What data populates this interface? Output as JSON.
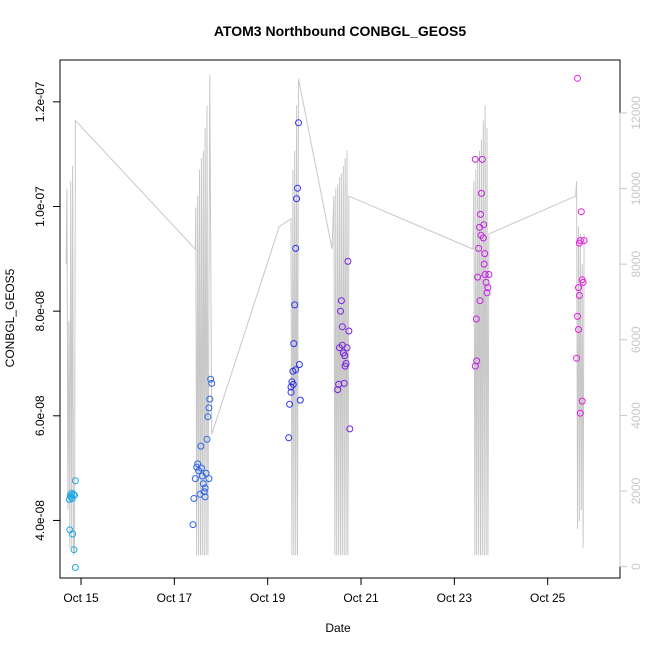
{
  "chart_data": {
    "type": "scatter",
    "title": "ATOM3 Northbound CONBGL_GEOS5",
    "xlabel": "Date",
    "ylabel": "CONBGL_GEOS5",
    "xlim": [
      14.55,
      26.55
    ],
    "ylim": [
      2.9e-08,
      1.28e-07
    ],
    "y2lim": [
      -300,
      13400
    ],
    "grid": false,
    "x_ticks": [
      15,
      17,
      19,
      21,
      23,
      25
    ],
    "x_tick_labels": [
      "Oct 15",
      "Oct 17",
      "Oct 19",
      "Oct 21",
      "Oct 23",
      "Oct 25"
    ],
    "y_ticks": [
      4e-08,
      6e-08,
      8e-08,
      1e-07,
      1.2e-07
    ],
    "y_tick_labels": [
      "4.0e-08",
      "6.0e-08",
      "8.0e-08",
      "1.0e-07",
      "1.2e-07"
    ],
    "y2_ticks": [
      0,
      2000,
      4000,
      6000,
      8000,
      10000,
      12000
    ],
    "y2_tick_labels": [
      "0",
      "2000",
      "4000",
      "6000",
      "8000",
      "10000",
      "12000"
    ],
    "colors": {
      "cluster1": "#1ea7e6",
      "cluster2": "#2c66e6",
      "cluster3": "#2f2ff0",
      "cluster4": "#7a1fe6",
      "cluster5": "#c81ee6",
      "cluster6": "#e61ee0",
      "altitude": "#c8c8c8",
      "frame": "#000000",
      "y2axis": "#c8c8c8"
    },
    "series": [
      {
        "values": [
          {
            "x": 14.75,
            "y": 4.4e-08
          },
          {
            "x": 14.77,
            "y": 4.48e-08
          },
          {
            "x": 14.79,
            "y": 4.45e-08
          },
          {
            "x": 14.81,
            "y": 4.42e-08
          },
          {
            "x": 14.84,
            "y": 4.5e-08
          },
          {
            "x": 14.86,
            "y": 4.48e-08
          },
          {
            "x": 14.88,
            "y": 4.76e-08
          },
          {
            "x": 14.76,
            "y": 3.82e-08
          },
          {
            "x": 14.82,
            "y": 3.74e-08
          },
          {
            "x": 14.85,
            "y": 3.44e-08
          },
          {
            "x": 14.88,
            "y": 3.1e-08
          },
          {
            "x": 14.8,
            "y": 4.52e-08
          }
        ],
        "color_key": "cluster1"
      },
      {
        "values": [
          {
            "x": 17.4,
            "y": 3.92e-08
          },
          {
            "x": 17.42,
            "y": 4.42e-08
          },
          {
            "x": 17.45,
            "y": 4.8e-08
          },
          {
            "x": 17.48,
            "y": 5.02e-08
          },
          {
            "x": 17.5,
            "y": 5.08e-08
          },
          {
            "x": 17.52,
            "y": 4.95e-08
          },
          {
            "x": 17.55,
            "y": 4.5e-08
          },
          {
            "x": 17.57,
            "y": 5.42e-08
          },
          {
            "x": 17.6,
            "y": 4.85e-08
          },
          {
            "x": 17.62,
            "y": 4.7e-08
          },
          {
            "x": 17.64,
            "y": 4.55e-08
          },
          {
            "x": 17.66,
            "y": 4.45e-08
          },
          {
            "x": 17.68,
            "y": 4.9e-08
          },
          {
            "x": 17.7,
            "y": 5.55e-08
          },
          {
            "x": 17.72,
            "y": 5.98e-08
          },
          {
            "x": 17.74,
            "y": 6.15e-08
          },
          {
            "x": 17.76,
            "y": 6.32e-08
          },
          {
            "x": 17.78,
            "y": 6.7e-08
          },
          {
            "x": 17.8,
            "y": 6.62e-08
          },
          {
            "x": 17.74,
            "y": 4.8e-08
          },
          {
            "x": 17.58,
            "y": 5e-08
          },
          {
            "x": 17.66,
            "y": 4.62e-08
          }
        ],
        "color_key": "cluster2"
      },
      {
        "values": [
          {
            "x": 19.45,
            "y": 5.58e-08
          },
          {
            "x": 19.47,
            "y": 6.22e-08
          },
          {
            "x": 19.5,
            "y": 6.55e-08
          },
          {
            "x": 19.52,
            "y": 6.65e-08
          },
          {
            "x": 19.54,
            "y": 6.85e-08
          },
          {
            "x": 19.56,
            "y": 7.38e-08
          },
          {
            "x": 19.58,
            "y": 8.12e-08
          },
          {
            "x": 19.6,
            "y": 9.2e-08
          },
          {
            "x": 19.62,
            "y": 1.015e-07
          },
          {
            "x": 19.64,
            "y": 1.035e-07
          },
          {
            "x": 19.66,
            "y": 1.16e-07
          },
          {
            "x": 19.68,
            "y": 6.98e-08
          },
          {
            "x": 19.7,
            "y": 6.3e-08
          },
          {
            "x": 19.5,
            "y": 6.45e-08
          },
          {
            "x": 19.55,
            "y": 6.6e-08
          },
          {
            "x": 19.6,
            "y": 6.88e-08
          }
        ],
        "color_key": "cluster3"
      },
      {
        "values": [
          {
            "x": 20.5,
            "y": 6.5e-08
          },
          {
            "x": 20.52,
            "y": 6.6e-08
          },
          {
            "x": 20.54,
            "y": 7.3e-08
          },
          {
            "x": 20.56,
            "y": 8e-08
          },
          {
            "x": 20.58,
            "y": 8.2e-08
          },
          {
            "x": 20.6,
            "y": 7.7e-08
          },
          {
            "x": 20.62,
            "y": 7.2e-08
          },
          {
            "x": 20.64,
            "y": 6.62e-08
          },
          {
            "x": 20.66,
            "y": 6.95e-08
          },
          {
            "x": 20.68,
            "y": 7e-08
          },
          {
            "x": 20.7,
            "y": 7.3e-08
          },
          {
            "x": 20.72,
            "y": 8.95e-08
          },
          {
            "x": 20.74,
            "y": 7.62e-08
          },
          {
            "x": 20.76,
            "y": 5.75e-08
          },
          {
            "x": 20.6,
            "y": 7.35e-08
          },
          {
            "x": 20.65,
            "y": 7.15e-08
          }
        ],
        "color_key": "cluster4"
      },
      {
        "values": [
          {
            "x": 23.45,
            "y": 6.95e-08
          },
          {
            "x": 23.47,
            "y": 7.85e-08
          },
          {
            "x": 23.5,
            "y": 8.65e-08
          },
          {
            "x": 23.52,
            "y": 9.2e-08
          },
          {
            "x": 23.54,
            "y": 9.6e-08
          },
          {
            "x": 23.56,
            "y": 9.85e-08
          },
          {
            "x": 23.58,
            "y": 1.025e-07
          },
          {
            "x": 23.6,
            "y": 1.09e-07
          },
          {
            "x": 23.62,
            "y": 9.4e-08
          },
          {
            "x": 23.64,
            "y": 8.9e-08
          },
          {
            "x": 23.66,
            "y": 8.7e-08
          },
          {
            "x": 23.68,
            "y": 8.55e-08
          },
          {
            "x": 23.7,
            "y": 8.35e-08
          },
          {
            "x": 23.72,
            "y": 8.45e-08
          },
          {
            "x": 23.74,
            "y": 8.7e-08
          },
          {
            "x": 23.55,
            "y": 8.2e-08
          },
          {
            "x": 23.65,
            "y": 9.1e-08
          },
          {
            "x": 23.48,
            "y": 7.05e-08
          },
          {
            "x": 23.57,
            "y": 9.45e-08
          },
          {
            "x": 23.63,
            "y": 9.65e-08
          },
          {
            "x": 23.45,
            "y": 1.09e-07
          }
        ],
        "color_key": "cluster5"
      },
      {
        "values": [
          {
            "x": 25.62,
            "y": 7.1e-08
          },
          {
            "x": 25.64,
            "y": 7.9e-08
          },
          {
            "x": 25.66,
            "y": 8.45e-08
          },
          {
            "x": 25.68,
            "y": 9.3e-08
          },
          {
            "x": 25.7,
            "y": 9.35e-08
          },
          {
            "x": 25.72,
            "y": 9.9e-08
          },
          {
            "x": 25.74,
            "y": 8.6e-08
          },
          {
            "x": 25.76,
            "y": 8.55e-08
          },
          {
            "x": 25.78,
            "y": 9.35e-08
          },
          {
            "x": 25.66,
            "y": 7.65e-08
          },
          {
            "x": 25.7,
            "y": 6.05e-08
          },
          {
            "x": 25.74,
            "y": 6.28e-08
          },
          {
            "x": 25.64,
            "y": 1.245e-07
          },
          {
            "x": 25.68,
            "y": 8.3e-08
          }
        ],
        "color_key": "cluster6"
      }
    ],
    "altitude_line": [
      [
        14.68,
        8000
      ],
      [
        14.7,
        10000
      ],
      [
        14.72,
        1500
      ],
      [
        14.74,
        6500
      ],
      [
        14.76,
        500
      ],
      [
        14.78,
        10200
      ],
      [
        14.8,
        500
      ],
      [
        14.82,
        10600
      ],
      [
        14.84,
        300
      ],
      [
        14.86,
        400
      ],
      [
        14.88,
        11800
      ],
      [
        17.45,
        8400
      ],
      [
        17.46,
        9500
      ],
      [
        17.48,
        300
      ],
      [
        17.5,
        9800
      ],
      [
        17.52,
        300
      ],
      [
        17.54,
        10500
      ],
      [
        17.56,
        300
      ],
      [
        17.58,
        10800
      ],
      [
        17.6,
        300
      ],
      [
        17.62,
        11000
      ],
      [
        17.64,
        300
      ],
      [
        17.66,
        11600
      ],
      [
        17.68,
        300
      ],
      [
        17.7,
        12200
      ],
      [
        17.72,
        300
      ],
      [
        17.76,
        13000
      ],
      [
        17.8,
        3500
      ],
      [
        19.25,
        9000
      ],
      [
        19.5,
        9200
      ],
      [
        19.52,
        300
      ],
      [
        19.54,
        10500
      ],
      [
        19.56,
        300
      ],
      [
        19.58,
        11000
      ],
      [
        19.6,
        300
      ],
      [
        19.62,
        12200
      ],
      [
        19.64,
        300
      ],
      [
        19.66,
        12900
      ],
      [
        20.38,
        8400
      ],
      [
        20.42,
        9800
      ],
      [
        20.44,
        300
      ],
      [
        20.46,
        10000
      ],
      [
        20.48,
        300
      ],
      [
        20.5,
        10100
      ],
      [
        20.52,
        300
      ],
      [
        20.54,
        10300
      ],
      [
        20.56,
        300
      ],
      [
        20.58,
        10400
      ],
      [
        20.6,
        300
      ],
      [
        20.62,
        10600
      ],
      [
        20.64,
        300
      ],
      [
        20.66,
        10800
      ],
      [
        20.68,
        300
      ],
      [
        20.7,
        11000
      ],
      [
        20.72,
        300
      ],
      [
        20.74,
        9800
      ],
      [
        23.4,
        8400
      ],
      [
        23.42,
        10200
      ],
      [
        23.44,
        300
      ],
      [
        23.46,
        10500
      ],
      [
        23.48,
        300
      ],
      [
        23.5,
        10800
      ],
      [
        23.52,
        300
      ],
      [
        23.54,
        11000
      ],
      [
        23.56,
        300
      ],
      [
        23.58,
        11300
      ],
      [
        23.6,
        300
      ],
      [
        23.62,
        11800
      ],
      [
        23.64,
        300
      ],
      [
        23.66,
        12200
      ],
      [
        23.68,
        300
      ],
      [
        23.7,
        11600
      ],
      [
        23.72,
        300
      ],
      [
        23.74,
        8800
      ],
      [
        25.6,
        9800
      ],
      [
        25.62,
        10200
      ],
      [
        25.64,
        1000
      ],
      [
        25.66,
        9000
      ],
      [
        25.68,
        1200
      ],
      [
        25.7,
        8800
      ],
      [
        25.72,
        1500
      ],
      [
        25.74,
        8000
      ],
      [
        25.76,
        500
      ],
      [
        25.78,
        8800
      ]
    ]
  }
}
